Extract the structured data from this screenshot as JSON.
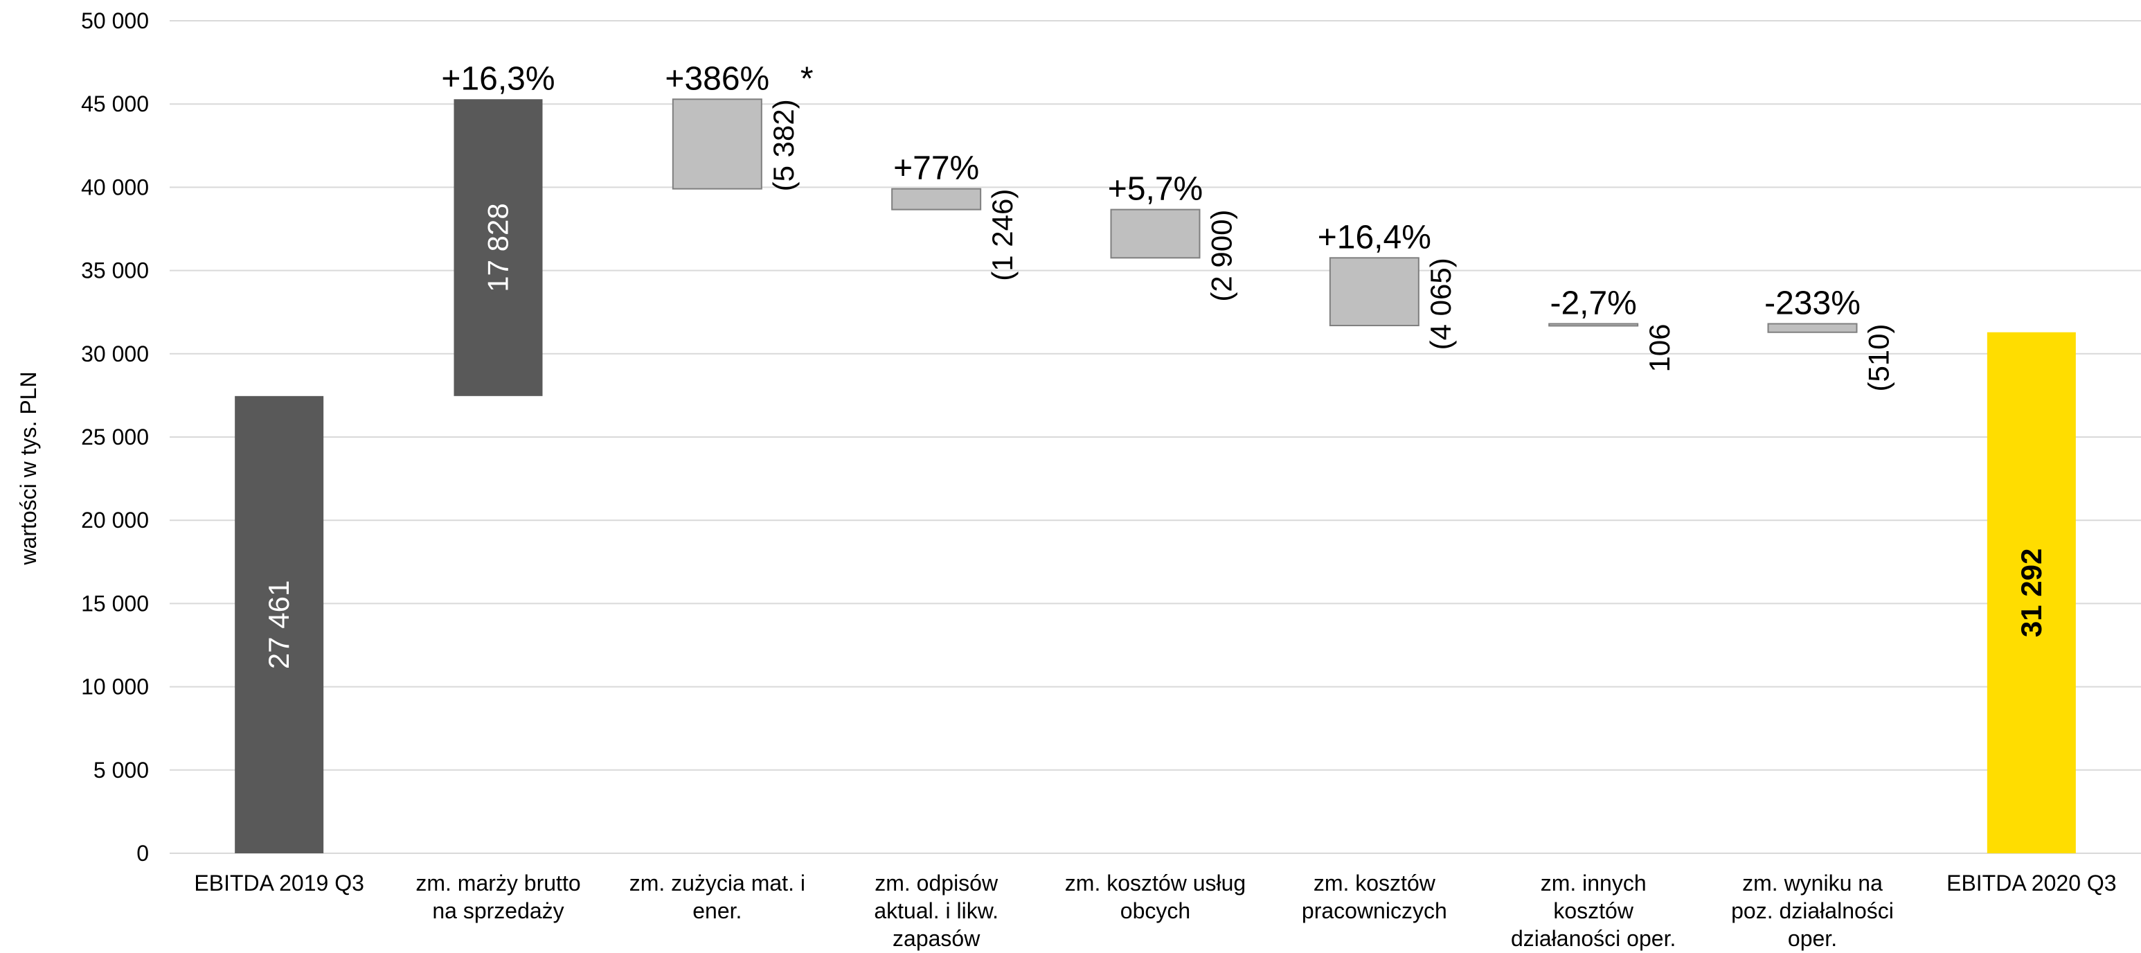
{
  "chart_data": {
    "type": "bar",
    "subtype": "waterfall",
    "ylabel": "wartości w tys. PLN",
    "ylim": [
      0,
      50000
    ],
    "yticks": [
      0,
      5000,
      10000,
      15000,
      20000,
      25000,
      30000,
      35000,
      40000,
      45000,
      50000
    ],
    "ytick_labels": [
      "0",
      "5 000",
      "10 000",
      "15 000",
      "20 000",
      "25 000",
      "30 000",
      "35 000",
      "40 000",
      "45 000",
      "50 000"
    ],
    "grid": true,
    "colors": {
      "total": "#595959",
      "change": "#bfbfbf",
      "final": "#ffdd00",
      "grid": "#d9d9d9"
    },
    "bars": [
      {
        "category": [
          "EBITDA 2019 Q3"
        ],
        "kind": "total",
        "start": 0,
        "end": 27461,
        "value_label": "27 461",
        "pct_label": ""
      },
      {
        "category": [
          "zm. marży brutto",
          "na sprzedaży"
        ],
        "kind": "total",
        "start": 27461,
        "end": 45289,
        "value_label": "17 828",
        "pct_label": "+16,3%"
      },
      {
        "category": [
          "zm. zużycia mat. i",
          "ener."
        ],
        "kind": "change",
        "start": 45289,
        "end": 39907,
        "value_label": "(5 382)",
        "pct_label": "+386%",
        "note": "*"
      },
      {
        "category": [
          "zm. odpisów",
          "aktual. i likw.",
          "zapasów"
        ],
        "kind": "change",
        "start": 39907,
        "end": 38661,
        "value_label": "(1 246)",
        "pct_label": "+77%"
      },
      {
        "category": [
          "zm. kosztów usług",
          "obcych"
        ],
        "kind": "change",
        "start": 38661,
        "end": 35761,
        "value_label": "(2 900)",
        "pct_label": "+5,7%"
      },
      {
        "category": [
          "zm. kosztów",
          "pracowniczych"
        ],
        "kind": "change",
        "start": 35761,
        "end": 31696,
        "value_label": "(4 065)",
        "pct_label": "+16,4%"
      },
      {
        "category": [
          "zm. innych",
          "kosztów",
          "działaności oper."
        ],
        "kind": "change",
        "start": 31696,
        "end": 31802,
        "value_label": "106",
        "pct_label": "-2,7%"
      },
      {
        "category": [
          "zm. wyniku na",
          "poz. działalności",
          "oper."
        ],
        "kind": "change",
        "start": 31802,
        "end": 31292,
        "value_label": "(510)",
        "pct_label": "-233%"
      },
      {
        "category": [
          "EBITDA 2020 Q3"
        ],
        "kind": "final",
        "start": 0,
        "end": 31292,
        "value_label": "31 292",
        "pct_label": ""
      }
    ]
  }
}
